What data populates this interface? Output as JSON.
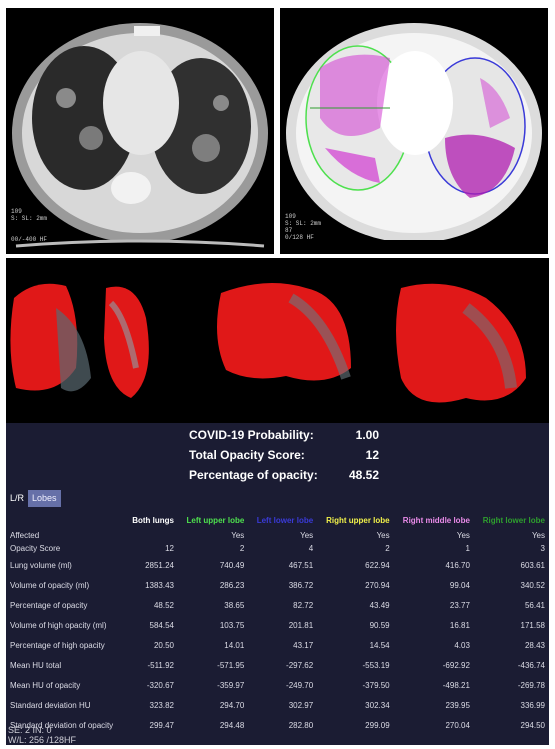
{
  "ct_left": {
    "overlay_lines": [
      "109",
      "S: SL: 2mm",
      "00/-400 HF"
    ]
  },
  "ct_right": {
    "overlay_lines": [
      "109",
      "S: SL: 2mm",
      "87",
      "0/128 HF"
    ]
  },
  "summary": {
    "probability_label": "COVID-19 Probability:",
    "probability_value": "1.00",
    "score_label": "Total Opacity Score:",
    "score_value": "12",
    "percentage_label": "Percentage of opacity:",
    "percentage_value": "48.52"
  },
  "tabs": [
    {
      "label": "L/R",
      "active": true
    },
    {
      "label": "Lobes",
      "active": false
    }
  ],
  "table": {
    "columns": [
      {
        "label": "Both lungs",
        "color": "#ffffff"
      },
      {
        "label": "Left upper lobe",
        "color": "#4ee04e"
      },
      {
        "label": "Left lower lobe",
        "color": "#3a3ad8"
      },
      {
        "label": "Right upper lobe",
        "color": "#f2f24a"
      },
      {
        "label": "Right middle lobe",
        "color": "#e98be9"
      },
      {
        "label": "Right lower lobe",
        "color": "#2e9e2e"
      }
    ],
    "rows": [
      {
        "label": "Affected",
        "values": [
          "",
          "Yes",
          "Yes",
          "Yes",
          "Yes",
          "Yes"
        ]
      },
      {
        "label": "Opacity Score",
        "values": [
          "12",
          "2",
          "4",
          "2",
          "1",
          "3"
        ]
      },
      {
        "label": "Lung volume (ml)",
        "values": [
          "2851.24",
          "740.49",
          "467.51",
          "622.94",
          "416.70",
          "603.61"
        ]
      },
      {
        "label": "Volume of opacity (ml)",
        "values": [
          "1383.43",
          "286.23",
          "386.72",
          "270.94",
          "99.04",
          "340.52"
        ]
      },
      {
        "label": "Percentage of opacity",
        "values": [
          "48.52",
          "38.65",
          "82.72",
          "43.49",
          "23.77",
          "56.41"
        ]
      },
      {
        "label": "Volume of high opacity (ml)",
        "values": [
          "584.54",
          "103.75",
          "201.81",
          "90.59",
          "16.81",
          "171.58"
        ]
      },
      {
        "label": "Percentage of high opacity",
        "values": [
          "20.50",
          "14.01",
          "43.17",
          "14.54",
          "4.03",
          "28.43"
        ]
      },
      {
        "label": "Mean HU total",
        "values": [
          "-511.92",
          "-571.95",
          "-297.62",
          "-553.19",
          "-692.92",
          "-436.74"
        ]
      },
      {
        "label": "Mean HU of opacity",
        "values": [
          "-320.67",
          "-359.97",
          "-249.70",
          "-379.50",
          "-498.21",
          "-269.78"
        ]
      },
      {
        "label": "Standard deviation HU",
        "values": [
          "323.82",
          "294.70",
          "302.97",
          "302.34",
          "239.95",
          "336.99"
        ]
      },
      {
        "label": "Standard deviation of opacity",
        "values": [
          "299.47",
          "294.48",
          "282.80",
          "299.09",
          "270.04",
          "294.50"
        ]
      }
    ]
  },
  "footer": {
    "line1": "SE: 2  IN: 0",
    "line2": "W/L: 256 /128HF"
  }
}
